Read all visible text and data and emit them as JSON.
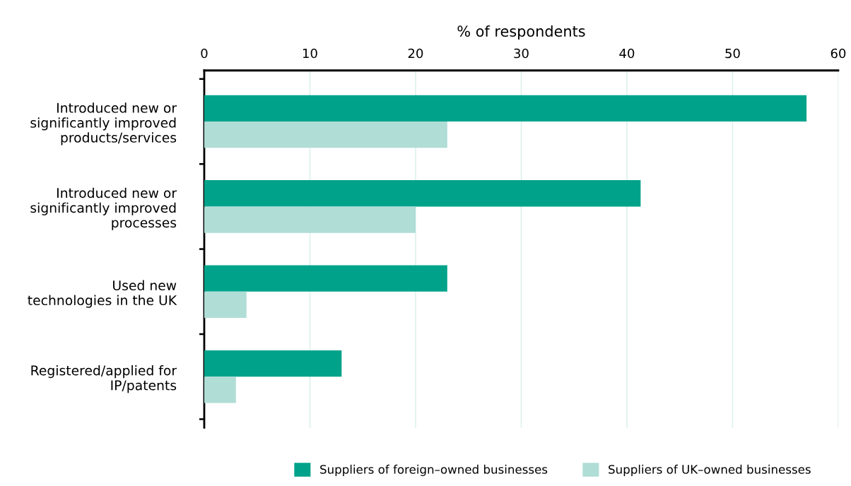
{
  "chart_data": {
    "type": "bar",
    "orientation": "horizontal",
    "xlabel": "% of respondents",
    "categories": [
      "Introduced new or\nsignificantly improved\nproducts/services",
      "Introduced new or\nsignificantly improved\nprocesses",
      "Used new\ntechnologies in the UK",
      "Registered/applied for\nIP/patents"
    ],
    "series": [
      {
        "name": "Suppliers of foreign–owned businesses",
        "color": "#00a38a",
        "values": [
          57,
          41.3,
          23,
          13
        ]
      },
      {
        "name": "Suppliers of UK–owned businesses",
        "color": "#b0ddd6",
        "values": [
          23,
          20,
          4,
          3
        ]
      }
    ],
    "xlim": [
      0,
      60
    ],
    "xticks": [
      0,
      10,
      20,
      30,
      40,
      50,
      60
    ],
    "grid": "x",
    "legend": "bottom"
  }
}
